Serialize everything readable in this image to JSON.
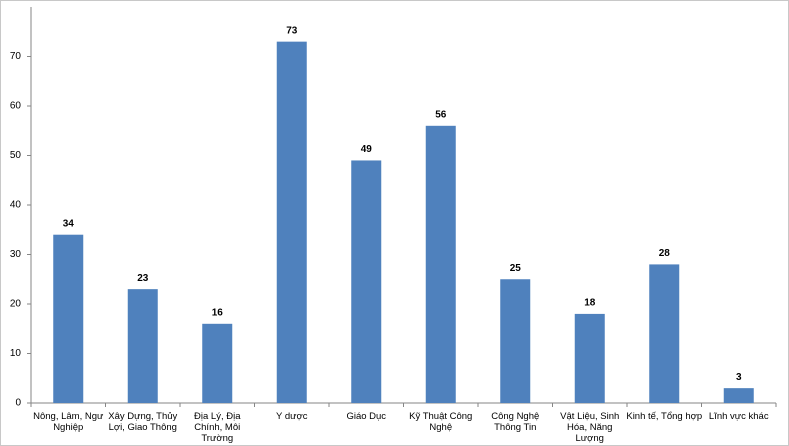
{
  "chart_data": {
    "type": "bar",
    "categories": [
      "Nông, Lâm, Ngư Nghiệp",
      "Xây Dựng, Thủy Lợi, Giao Thông",
      "Địa Lý, Địa Chính, Môi Trường",
      "Y dược",
      "Giáo Dục",
      "Kỹ Thuật Công Nghệ",
      "Công Nghệ Thông Tin",
      "Vật Liệu, Sinh Hóa, Năng Lượng",
      "Kinh tế, Tổng hợp",
      "Lĩnh vực khác"
    ],
    "values": [
      34,
      23,
      16,
      73,
      49,
      56,
      25,
      18,
      28,
      3
    ],
    "color": "#4f81bd",
    "ylim": [
      0,
      80
    ],
    "yticks": [
      0,
      10,
      20,
      30,
      40,
      50,
      60,
      70
    ],
    "grid": false
  }
}
